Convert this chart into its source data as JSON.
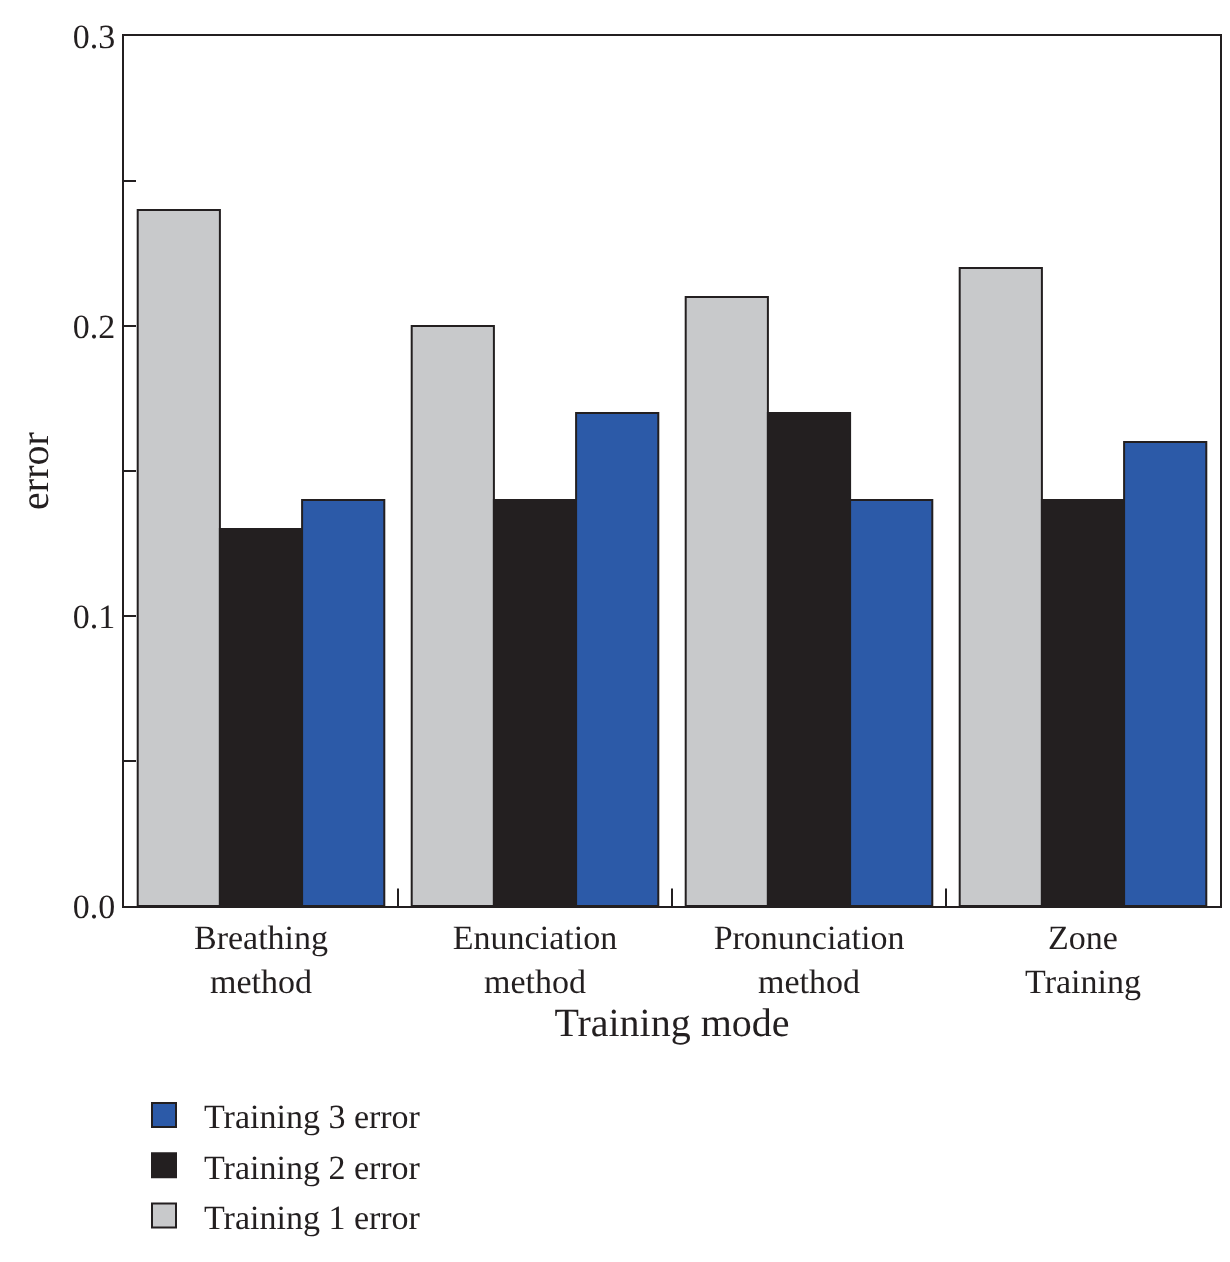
{
  "chart_data": {
    "type": "bar",
    "xlabel": "Training mode",
    "ylabel": "error",
    "categories": [
      "Breathing\nmethod",
      "Enunciation\nmethod",
      "Pronunciation\nmethod",
      "Zone\nTraining"
    ],
    "series": [
      {
        "name": "Training 1 error",
        "color": "#c8c9cb",
        "values": [
          0.24,
          0.2,
          0.21,
          0.22
        ]
      },
      {
        "name": "Training 2 error",
        "color": "#231f20",
        "values": [
          0.13,
          0.14,
          0.17,
          0.14
        ]
      },
      {
        "name": "Training 3 error",
        "color": "#2c5aa8",
        "values": [
          0.14,
          0.17,
          0.14,
          0.16
        ]
      }
    ],
    "ylim": [
      0,
      0.3
    ],
    "yticks": [
      {
        "value": 0,
        "label": "0.0"
      },
      {
        "value": 0.05,
        "label": null
      },
      0.1,
      {
        "value": 0.15,
        "label": null
      },
      0.2,
      {
        "value": 0.25,
        "label": null
      },
      0.3
    ],
    "legend": "bottom"
  }
}
